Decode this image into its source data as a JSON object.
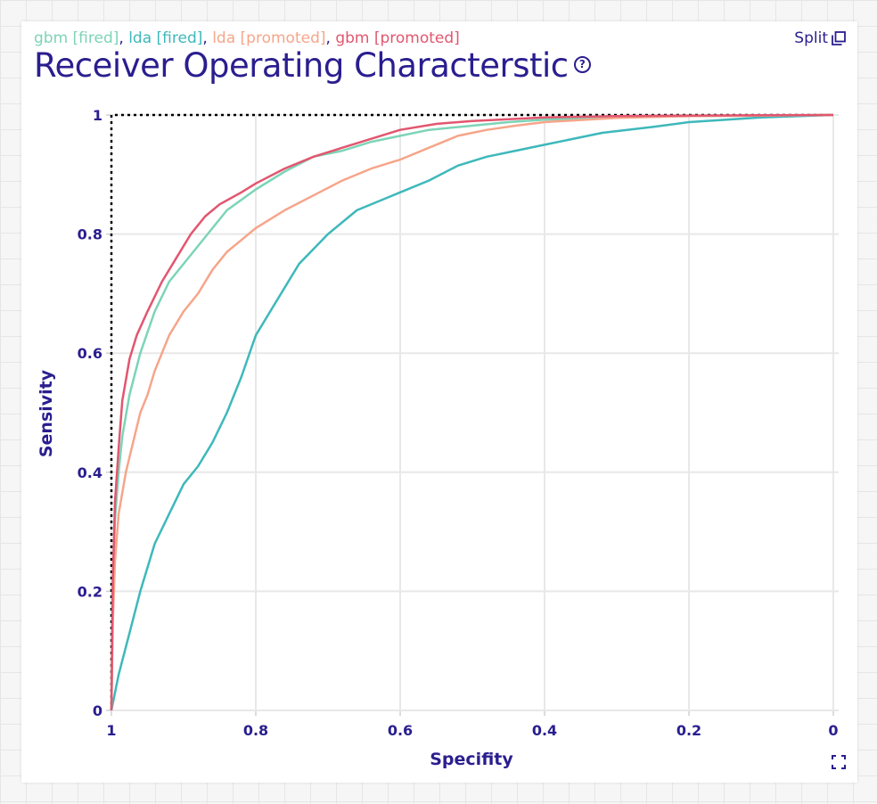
{
  "header": {
    "title": "Receiver Operating Characterstic",
    "help_icon": "?",
    "split_label": "Split"
  },
  "icons": {
    "help": "question-circle-icon",
    "split": "split-windows-icon",
    "expand": "expand-icon"
  },
  "colors": {
    "title": "#2a1e8f",
    "gbm_fired": "#7dd4b7",
    "lda_fired": "#3eb8bb",
    "lda_promoted": "#f6a58a",
    "gbm_promoted": "#e2566f"
  },
  "chart_data": {
    "type": "line",
    "title": "Receiver Operating Characterstic",
    "xlabel": "Specifity",
    "ylabel": "Sensivity",
    "xlim": [
      1,
      0
    ],
    "ylim": [
      0,
      1
    ],
    "x_reversed": true,
    "grid": true,
    "legend_position": "top-left",
    "xticks": [
      "1",
      "0.8",
      "0.6",
      "0.4",
      "0.2",
      "0"
    ],
    "yticks": [
      "0",
      "0.2",
      "0.4",
      "0.6",
      "0.8",
      "1"
    ],
    "reference_line": {
      "style": "dotted",
      "points": [
        [
          1,
          0
        ],
        [
          1,
          1
        ],
        [
          0,
          1
        ]
      ]
    },
    "series": [
      {
        "name": "gbm [fired]",
        "color": "#7dd4b7",
        "x": [
          1,
          0.998,
          0.995,
          0.99,
          0.985,
          0.975,
          0.96,
          0.94,
          0.92,
          0.9,
          0.88,
          0.86,
          0.84,
          0.8,
          0.76,
          0.72,
          0.68,
          0.64,
          0.6,
          0.56,
          0.5,
          0.45,
          0.4,
          0.3,
          0.2,
          0.1,
          0
        ],
        "y": [
          0,
          0.2,
          0.32,
          0.4,
          0.46,
          0.53,
          0.6,
          0.67,
          0.72,
          0.75,
          0.78,
          0.81,
          0.84,
          0.875,
          0.905,
          0.93,
          0.94,
          0.955,
          0.965,
          0.975,
          0.982,
          0.988,
          0.992,
          0.996,
          0.998,
          0.999,
          1
        ]
      },
      {
        "name": "lda [fired]",
        "color": "#3eb8bb",
        "x": [
          1,
          0.99,
          0.975,
          0.96,
          0.94,
          0.92,
          0.9,
          0.88,
          0.86,
          0.84,
          0.82,
          0.8,
          0.78,
          0.76,
          0.74,
          0.7,
          0.66,
          0.62,
          0.6,
          0.56,
          0.52,
          0.48,
          0.44,
          0.4,
          0.32,
          0.25,
          0.2,
          0.1,
          0
        ],
        "y": [
          0,
          0.06,
          0.13,
          0.2,
          0.28,
          0.33,
          0.38,
          0.41,
          0.45,
          0.5,
          0.56,
          0.63,
          0.67,
          0.71,
          0.75,
          0.8,
          0.84,
          0.86,
          0.87,
          0.89,
          0.915,
          0.93,
          0.94,
          0.95,
          0.97,
          0.98,
          0.988,
          0.996,
          1
        ]
      },
      {
        "name": "lda [promoted]",
        "color": "#f6a58a",
        "x": [
          1,
          0.998,
          0.995,
          0.99,
          0.98,
          0.97,
          0.96,
          0.95,
          0.94,
          0.92,
          0.9,
          0.88,
          0.86,
          0.84,
          0.82,
          0.8,
          0.76,
          0.72,
          0.68,
          0.64,
          0.6,
          0.56,
          0.52,
          0.48,
          0.44,
          0.4,
          0.3,
          0.2,
          0.1,
          0
        ],
        "y": [
          0,
          0.15,
          0.25,
          0.33,
          0.4,
          0.45,
          0.5,
          0.53,
          0.57,
          0.63,
          0.67,
          0.7,
          0.74,
          0.77,
          0.79,
          0.81,
          0.84,
          0.865,
          0.89,
          0.91,
          0.925,
          0.945,
          0.965,
          0.975,
          0.982,
          0.988,
          0.995,
          0.998,
          0.999,
          1
        ]
      },
      {
        "name": "gbm [promoted]",
        "color": "#e2566f",
        "x": [
          1,
          0.998,
          0.995,
          0.99,
          0.985,
          0.975,
          0.965,
          0.95,
          0.93,
          0.91,
          0.89,
          0.87,
          0.85,
          0.82,
          0.8,
          0.76,
          0.72,
          0.68,
          0.64,
          0.6,
          0.55,
          0.5,
          0.45,
          0.4,
          0.3,
          0.2,
          0.1,
          0
        ],
        "y": [
          0,
          0.22,
          0.35,
          0.44,
          0.52,
          0.59,
          0.63,
          0.67,
          0.72,
          0.76,
          0.8,
          0.83,
          0.85,
          0.87,
          0.885,
          0.91,
          0.93,
          0.945,
          0.96,
          0.975,
          0.985,
          0.99,
          0.993,
          0.996,
          0.998,
          0.999,
          0.9995,
          1
        ]
      }
    ]
  }
}
